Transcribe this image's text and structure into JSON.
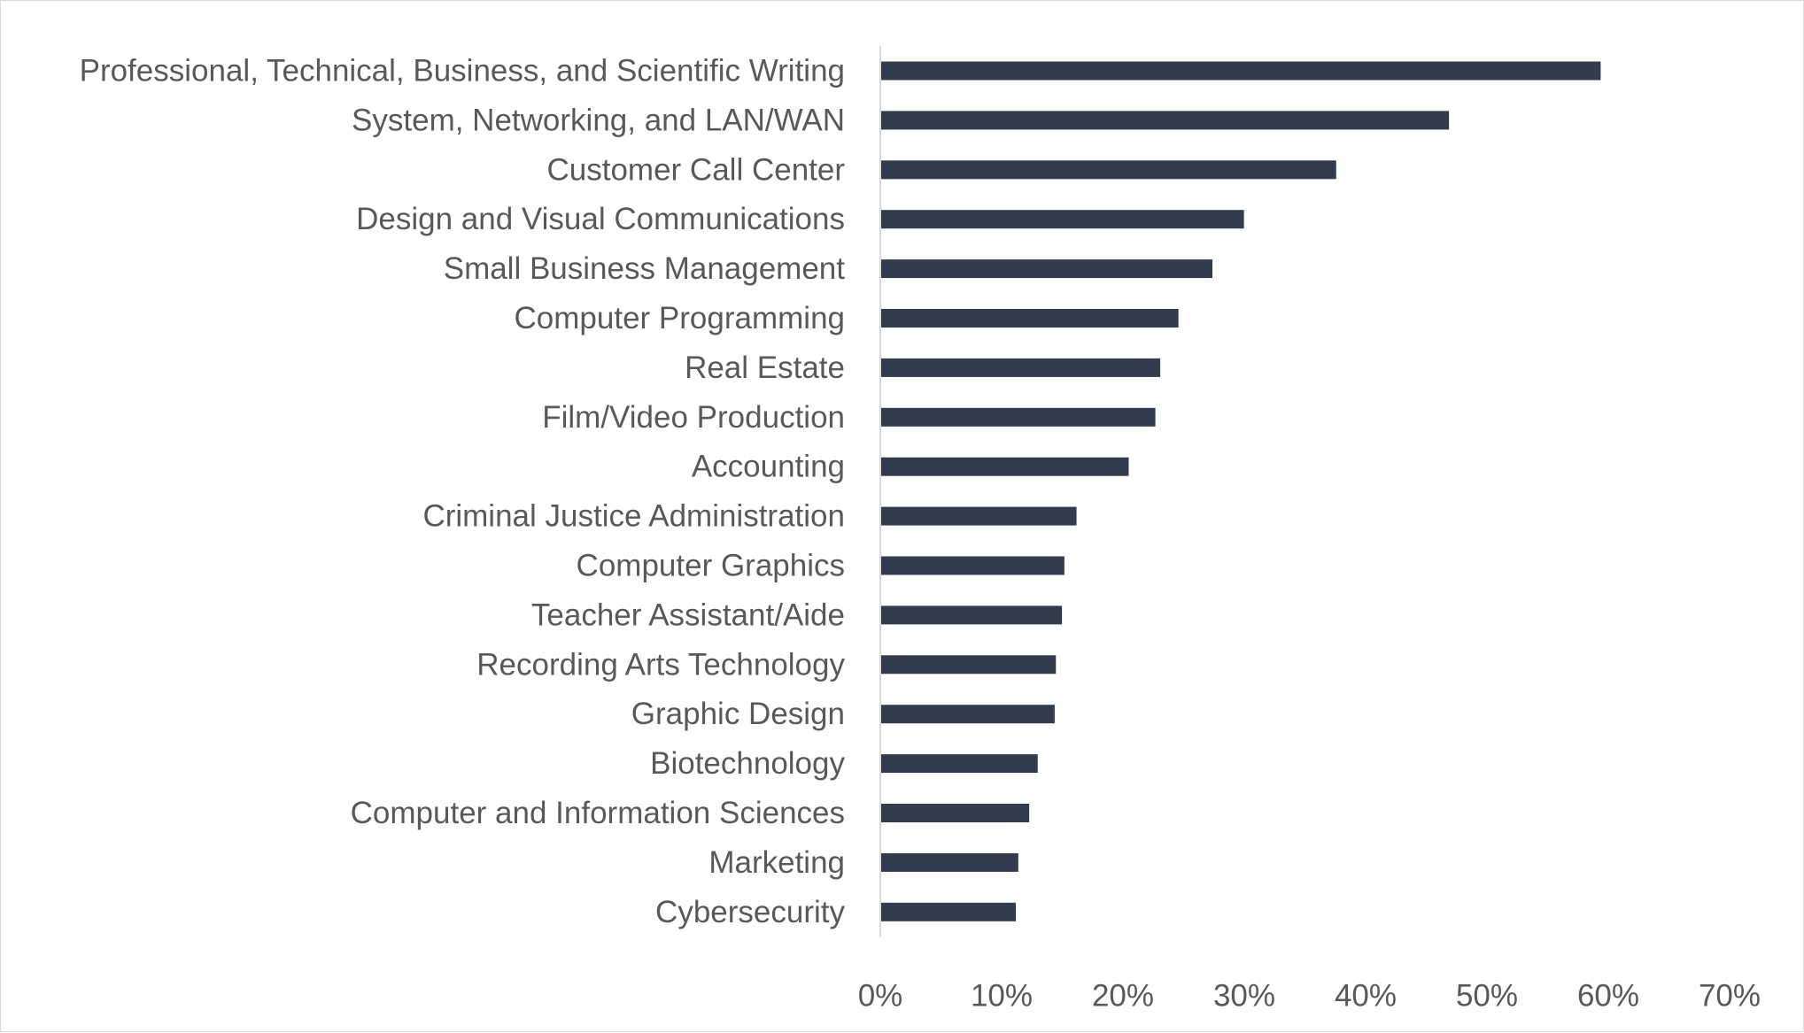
{
  "chart_data": {
    "type": "bar",
    "orientation": "horizontal",
    "categories": [
      "Professional, Technical, Business, and Scientific Writing",
      "System, Networking, and LAN/WAN",
      "Customer Call Center",
      "Design and Visual Communications",
      "Small Business Management",
      "Computer Programming",
      "Real Estate",
      "Film/Video Production",
      "Accounting",
      "Criminal Justice Administration",
      "Computer Graphics",
      "Teacher Assistant/Aide",
      "Recording Arts Technology",
      "Graphic Design",
      "Biotechnology",
      "Computer and Information Sciences",
      "Marketing",
      "Cybersecurity"
    ],
    "values": [
      59.3,
      46.8,
      37.5,
      29.9,
      27.3,
      24.5,
      23.0,
      22.6,
      20.4,
      16.1,
      15.1,
      14.9,
      14.4,
      14.3,
      12.9,
      12.2,
      11.3,
      11.1
    ],
    "xlim": [
      0,
      70
    ],
    "x_ticks": [
      "0%",
      "10%",
      "20%",
      "30%",
      "40%",
      "50%",
      "60%",
      "70%"
    ],
    "title": "",
    "xlabel": "",
    "ylabel": "",
    "bar_color": "#323c4d",
    "grid": false,
    "legend": "none"
  }
}
